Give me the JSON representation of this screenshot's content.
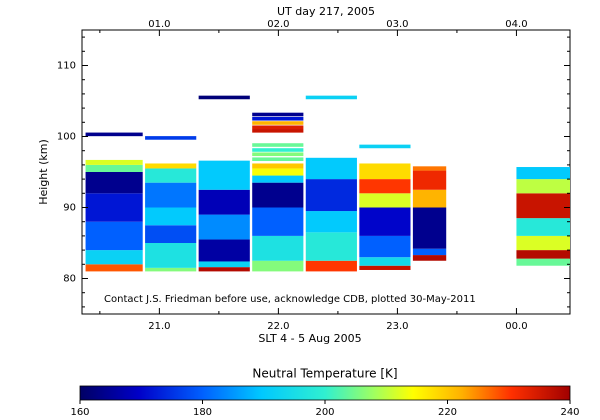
{
  "chart_data": {
    "type": "heatmap",
    "title": "UT day 217, 2005",
    "xlabel": "SLT 4 - 5 Aug 2005",
    "ylabel": "Height (km)",
    "annotation": "Contact J.S. Friedman before use, acknowledge CDB, plotted 30-May-2011",
    "colorbar_label": "Neutral Temperature [K]",
    "colorbar_ticks": [
      "160",
      "180",
      "200",
      "220",
      "240"
    ],
    "colorbar_range": [
      160,
      240
    ],
    "top_axis_ticks": [
      "01.0",
      "02.0",
      "03.0",
      "04.0"
    ],
    "bottom_axis_ticks": [
      "21.0",
      "22.0",
      "23.0",
      "00.0"
    ],
    "y_ticks": [
      "80",
      "90",
      "100",
      "110"
    ],
    "xlim": [
      20.35,
      24.45
    ],
    "ylim": [
      75,
      115
    ],
    "columns": [
      {
        "x0": 20.38,
        "x1": 20.86,
        "segments": [
          {
            "y0": 81,
            "y1": 82,
            "t": 228
          },
          {
            "y0": 82,
            "y1": 84,
            "t": 192
          },
          {
            "y0": 84,
            "y1": 88,
            "t": 180
          },
          {
            "y0": 88,
            "y1": 92,
            "t": 172
          },
          {
            "y0": 92,
            "y1": 95,
            "t": 164
          },
          {
            "y0": 95,
            "y1": 96,
            "t": 204
          },
          {
            "y0": 96,
            "y1": 96.7,
            "t": 212
          }
        ],
        "lines": [
          {
            "y": 100.3,
            "t": 164
          }
        ]
      },
      {
        "x0": 20.88,
        "x1": 21.31,
        "segments": [
          {
            "y0": 81,
            "y1": 81.5,
            "t": 206
          },
          {
            "y0": 81.5,
            "y1": 85,
            "t": 196
          },
          {
            "y0": 85,
            "y1": 87.5,
            "t": 178
          },
          {
            "y0": 87.5,
            "y1": 90,
            "t": 190
          },
          {
            "y0": 90,
            "y1": 93.5,
            "t": 182
          },
          {
            "y0": 93.5,
            "y1": 95.5,
            "t": 198
          },
          {
            "y0": 95.5,
            "y1": 96.2,
            "t": 218
          }
        ],
        "lines": [
          {
            "y": 99.8,
            "t": 176
          }
        ]
      },
      {
        "x0": 21.33,
        "x1": 21.76,
        "segments": [
          {
            "y0": 81,
            "y1": 81.6,
            "t": 238
          },
          {
            "y0": 81.6,
            "y1": 82.4,
            "t": 192
          },
          {
            "y0": 82.4,
            "y1": 85.5,
            "t": 166
          },
          {
            "y0": 85.5,
            "y1": 89,
            "t": 184
          },
          {
            "y0": 89,
            "y1": 92.5,
            "t": 168
          },
          {
            "y0": 92.5,
            "y1": 96.6,
            "t": 190
          }
        ],
        "lines": [
          {
            "y": 105.5,
            "t": 162
          }
        ]
      },
      {
        "x0": 21.78,
        "x1": 22.21,
        "segments": [
          {
            "y0": 81,
            "y1": 82.5,
            "t": 206
          },
          {
            "y0": 82.5,
            "y1": 86,
            "t": 196
          },
          {
            "y0": 86,
            "y1": 90,
            "t": 180
          },
          {
            "y0": 90,
            "y1": 93.5,
            "t": 164
          },
          {
            "y0": 93.5,
            "y1": 94.5,
            "t": 190
          },
          {
            "y0": 94.5,
            "y1": 95.5,
            "t": 214
          },
          {
            "y0": 95.5,
            "y1": 96.2,
            "t": 220
          }
        ],
        "lines": [
          {
            "y": 96.8,
            "t": 204
          },
          {
            "y": 97.5,
            "t": 206
          },
          {
            "y": 98.1,
            "t": 200
          },
          {
            "y": 98.8,
            "t": 204
          },
          {
            "y": 100.8,
            "t": 236
          },
          {
            "y": 101.3,
            "t": 234
          },
          {
            "y": 101.9,
            "t": 222
          },
          {
            "y": 102.5,
            "t": 172
          },
          {
            "y": 103.1,
            "t": 164
          }
        ]
      },
      {
        "x0": 22.23,
        "x1": 22.66,
        "segments": [
          {
            "y0": 81,
            "y1": 82.5,
            "t": 230
          },
          {
            "y0": 82.5,
            "y1": 86.5,
            "t": 198
          },
          {
            "y0": 86.5,
            "y1": 89.5,
            "t": 190
          },
          {
            "y0": 89.5,
            "y1": 94,
            "t": 174
          },
          {
            "y0": 94,
            "y1": 97,
            "t": 190
          }
        ],
        "lines": [
          {
            "y": 105.5,
            "t": 192
          }
        ]
      },
      {
        "x0": 22.68,
        "x1": 23.11,
        "segments": [
          {
            "y0": 81.2,
            "y1": 81.8,
            "t": 236
          },
          {
            "y0": 81.8,
            "y1": 83,
            "t": 194
          },
          {
            "y0": 83,
            "y1": 86,
            "t": 180
          },
          {
            "y0": 86,
            "y1": 90,
            "t": 170
          },
          {
            "y0": 90,
            "y1": 92,
            "t": 212
          },
          {
            "y0": 92,
            "y1": 94,
            "t": 230
          },
          {
            "y0": 94,
            "y1": 96.2,
            "t": 218
          }
        ],
        "lines": [
          {
            "y": 98.6,
            "t": 192
          }
        ]
      },
      {
        "x0": 23.13,
        "x1": 23.41,
        "segments": [
          {
            "y0": 82.5,
            "y1": 83.3,
            "t": 238
          },
          {
            "y0": 83.3,
            "y1": 84.2,
            "t": 180
          },
          {
            "y0": 84.2,
            "y1": 90,
            "t": 164
          },
          {
            "y0": 90,
            "y1": 92.5,
            "t": 222
          },
          {
            "y0": 92.5,
            "y1": 95.2,
            "t": 232
          },
          {
            "y0": 95.2,
            "y1": 95.8,
            "t": 226
          }
        ],
        "lines": []
      },
      {
        "x0": 24.0,
        "x1": 24.45,
        "segments": [
          {
            "y0": 81.8,
            "y1": 82.8,
            "t": 204
          },
          {
            "y0": 82.8,
            "y1": 84,
            "t": 238
          },
          {
            "y0": 84,
            "y1": 86,
            "t": 212
          },
          {
            "y0": 86,
            "y1": 88.5,
            "t": 198
          },
          {
            "y0": 88.5,
            "y1": 92,
            "t": 236
          },
          {
            "y0": 92,
            "y1": 94,
            "t": 210
          },
          {
            "y0": 94,
            "y1": 95.7,
            "t": 190
          }
        ],
        "lines": []
      }
    ]
  }
}
